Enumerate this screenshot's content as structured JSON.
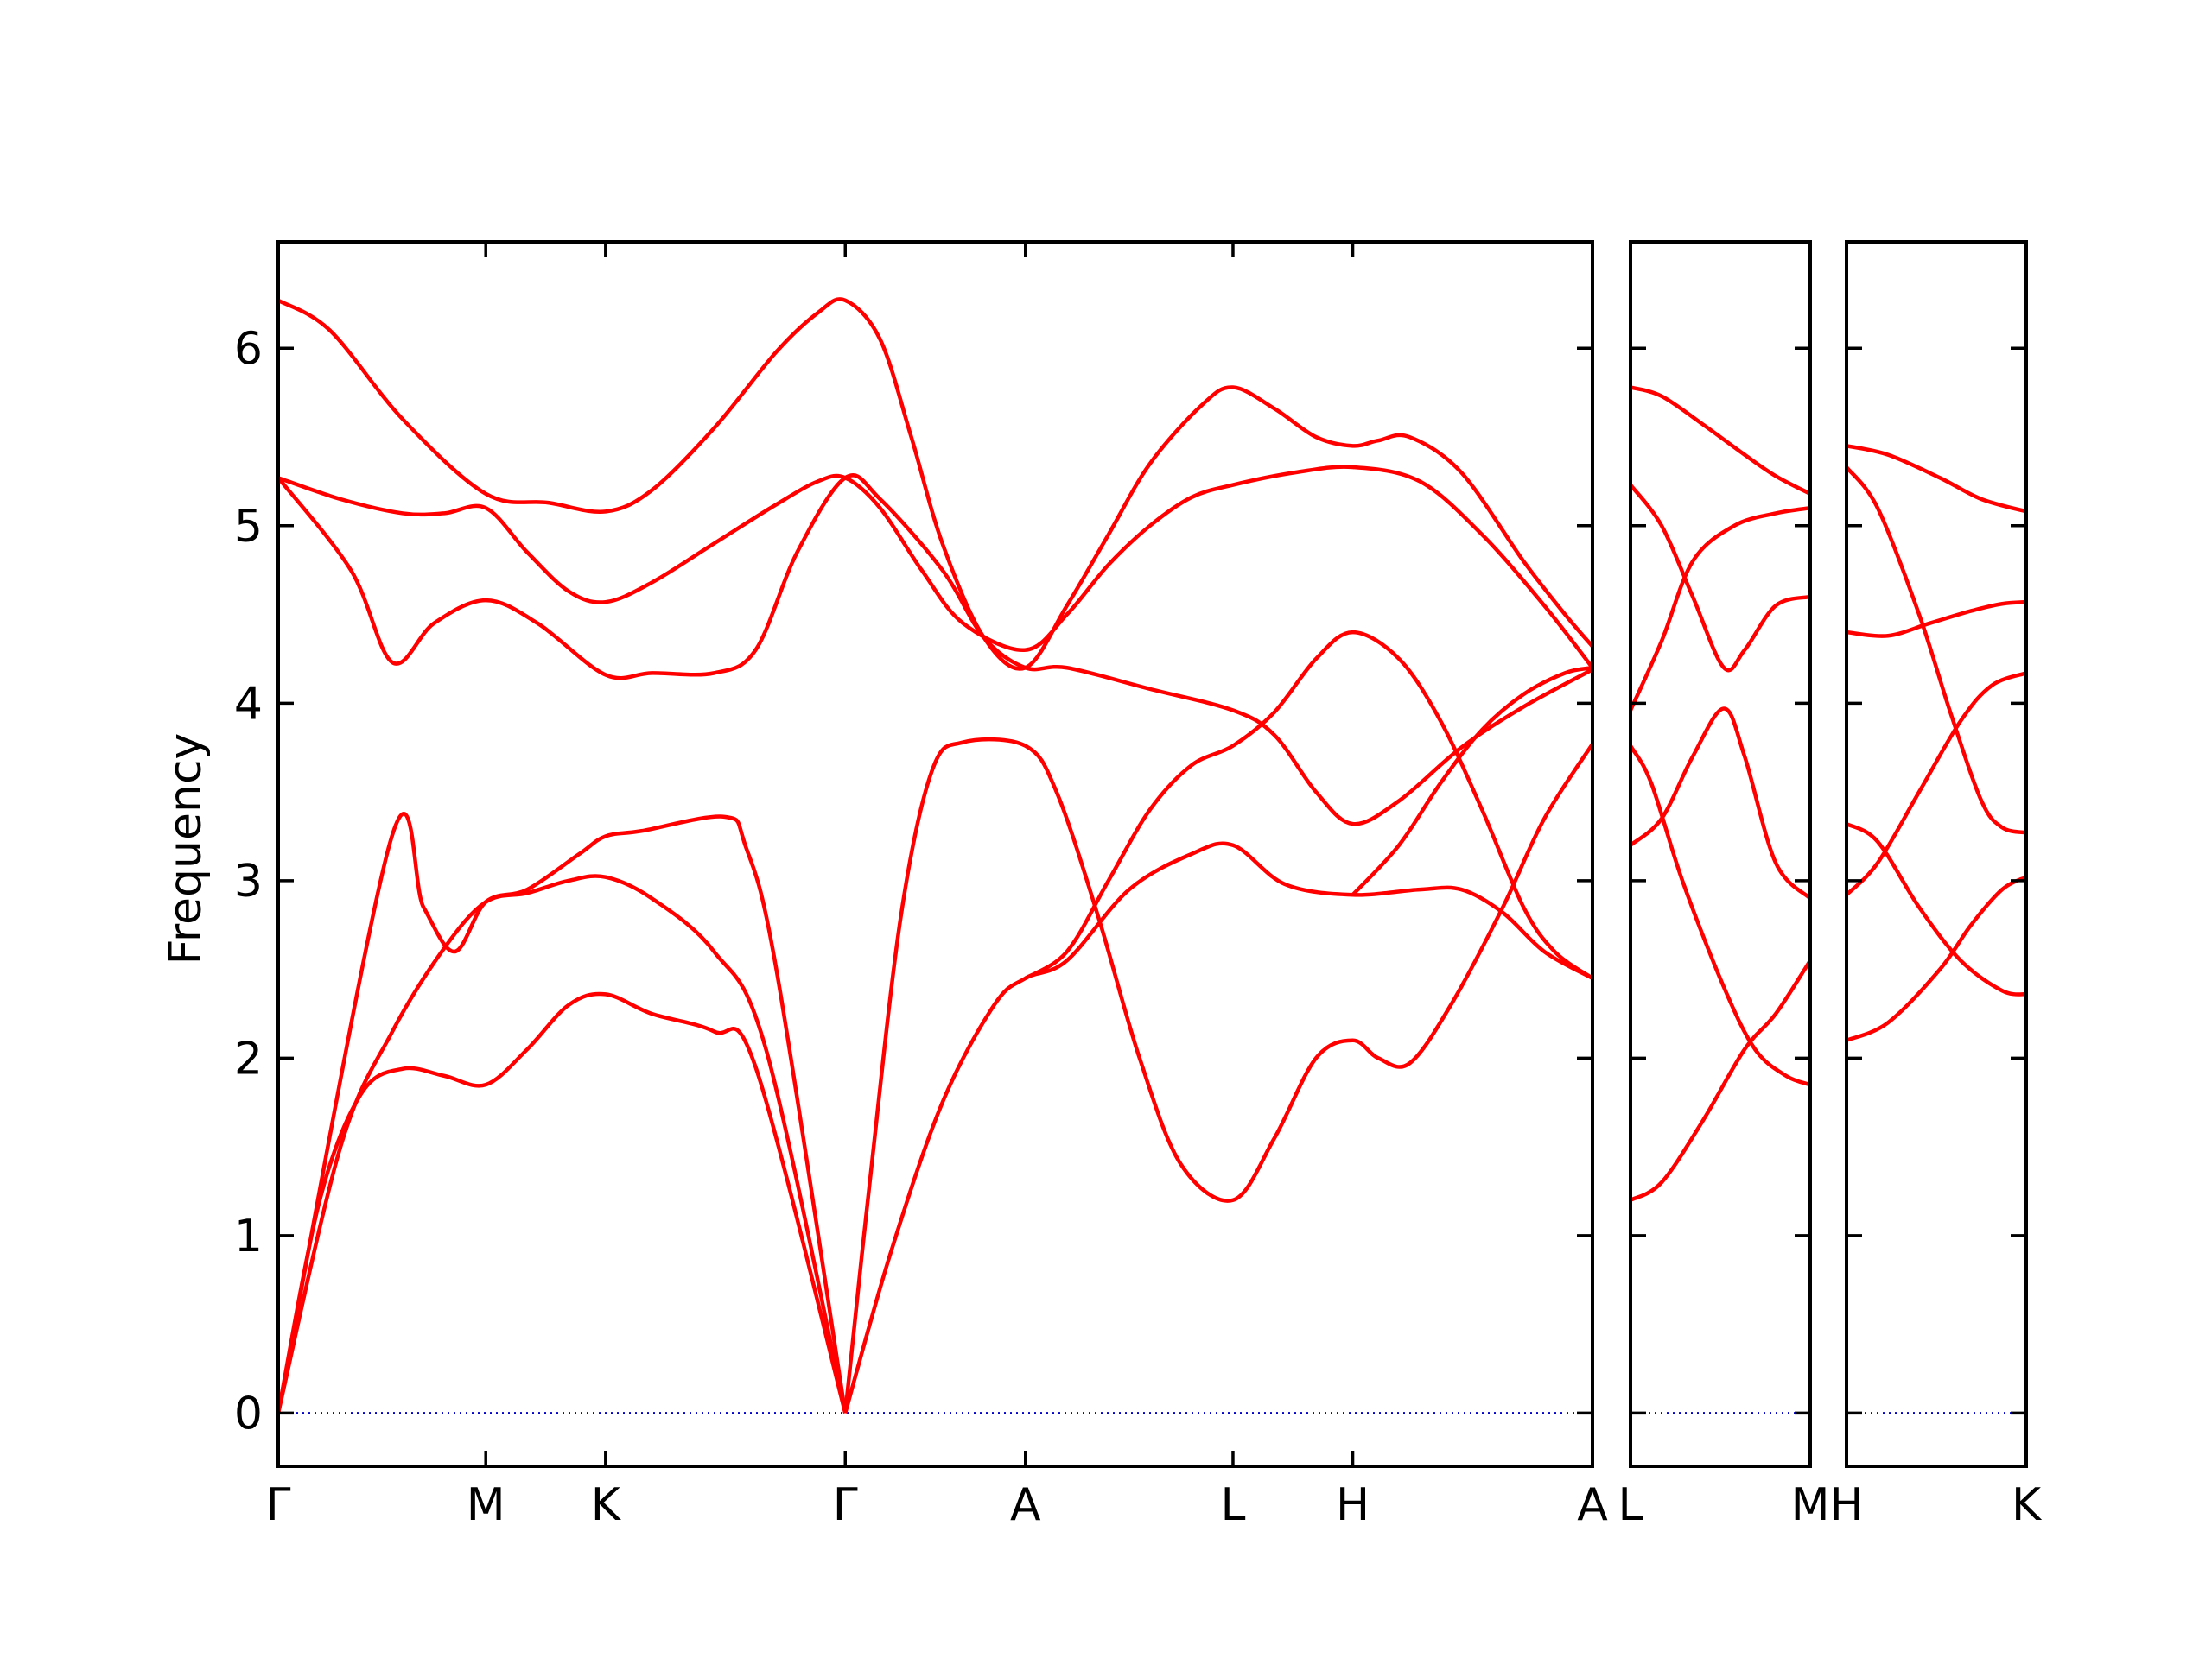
{
  "chart_data": {
    "type": "line",
    "ylabel": "Frequency",
    "ylim": [
      -0.3,
      6.6
    ],
    "yticks": [
      0,
      1,
      2,
      3,
      4,
      5,
      6
    ],
    "grid": false,
    "zero_line_color": "#0000cc",
    "band_color": "#ff0000",
    "panels": [
      {
        "ticks": [
          {
            "label": "Γ",
            "x": 0
          },
          {
            "label": "M",
            "x": 1.0
          },
          {
            "label": "K",
            "x": 1.577
          },
          {
            "label": "Γ",
            "x": 2.732
          },
          {
            "label": "A",
            "x": 3.6
          },
          {
            "label": "L",
            "x": 4.6
          },
          {
            "label": "H",
            "x": 5.177
          },
          {
            "label": "A",
            "x": 6.332
          }
        ],
        "xlim": [
          0,
          6.332
        ],
        "bands": [
          [
            [
              0,
              0
            ],
            [
              0.54,
              3.22
            ],
            [
              0.7,
              2.85
            ],
            [
              0.85,
              2.6
            ],
            [
              1.0,
              2.88
            ],
            [
              1.2,
              2.95
            ],
            [
              1.45,
              3.15
            ],
            [
              1.577,
              3.25
            ],
            [
              1.75,
              3.28
            ],
            [
              2.15,
              3.36
            ],
            [
              2.25,
              3.2
            ],
            [
              2.4,
              2.5
            ],
            [
              2.732,
              0
            ]
          ],
          [
            [
              0,
              0
            ],
            [
              0.3,
              1.5
            ],
            [
              0.55,
              2.15
            ],
            [
              0.8,
              2.62
            ],
            [
              1.0,
              2.88
            ],
            [
              1.2,
              2.93
            ],
            [
              1.4,
              3.0
            ],
            [
              1.577,
              3.02
            ],
            [
              1.8,
              2.9
            ],
            [
              2.1,
              2.6
            ],
            [
              2.35,
              2.05
            ],
            [
              2.732,
              0
            ]
          ],
          [
            [
              0,
              0
            ],
            [
              0.2,
              1.2
            ],
            [
              0.4,
              1.8
            ],
            [
              0.6,
              1.94
            ],
            [
              0.8,
              1.9
            ],
            [
              1.0,
              1.85
            ],
            [
              1.2,
              2.05
            ],
            [
              1.4,
              2.3
            ],
            [
              1.577,
              2.36
            ],
            [
              1.8,
              2.25
            ],
            [
              2.1,
              2.15
            ],
            [
              2.3,
              1.95
            ],
            [
              2.732,
              0
            ]
          ],
          [
            [
              0,
              5.27
            ],
            [
              0.35,
              4.75
            ],
            [
              0.55,
              4.23
            ],
            [
              0.75,
              4.45
            ],
            [
              1.0,
              4.58
            ],
            [
              1.25,
              4.45
            ],
            [
              1.577,
              4.16
            ],
            [
              1.8,
              4.17
            ],
            [
              2.1,
              4.17
            ],
            [
              2.3,
              4.3
            ],
            [
              2.5,
              4.85
            ],
            [
              2.732,
              5.27
            ],
            [
              2.9,
              5.15
            ],
            [
              3.2,
              4.75
            ],
            [
              3.4,
              4.37
            ],
            [
              3.6,
              4.2
            ],
            [
              3.8,
              4.2
            ],
            [
              4.2,
              4.08
            ],
            [
              4.6,
              3.96
            ],
            [
              4.8,
              3.82
            ],
            [
              5.0,
              3.5
            ],
            [
              5.177,
              3.32
            ],
            [
              5.4,
              3.45
            ],
            [
              5.7,
              3.75
            ],
            [
              6.0,
              3.98
            ],
            [
              6.332,
              4.19
            ]
          ],
          [
            [
              0,
              5.27
            ],
            [
              0.3,
              5.15
            ],
            [
              0.6,
              5.07
            ],
            [
              0.8,
              5.07
            ],
            [
              1.0,
              5.1
            ],
            [
              1.2,
              4.85
            ],
            [
              1.4,
              4.63
            ],
            [
              1.577,
              4.57
            ],
            [
              1.8,
              4.68
            ],
            [
              2.1,
              4.9
            ],
            [
              2.4,
              5.12
            ],
            [
              2.6,
              5.25
            ],
            [
              2.732,
              5.27
            ],
            [
              2.9,
              5.1
            ],
            [
              3.1,
              4.75
            ],
            [
              3.3,
              4.45
            ],
            [
              3.6,
              4.3
            ],
            [
              3.8,
              4.5
            ],
            [
              4.0,
              4.78
            ],
            [
              4.2,
              5.0
            ],
            [
              4.4,
              5.16
            ],
            [
              4.6,
              5.23
            ],
            [
              4.9,
              5.3
            ],
            [
              5.177,
              5.33
            ],
            [
              5.5,
              5.25
            ],
            [
              5.8,
              4.95
            ],
            [
              6.1,
              4.55
            ],
            [
              6.332,
              4.2
            ]
          ],
          [
            [
              0,
              6.27
            ],
            [
              0.25,
              6.1
            ],
            [
              0.6,
              5.6
            ],
            [
              1.0,
              5.18
            ],
            [
              1.3,
              5.13
            ],
            [
              1.577,
              5.08
            ],
            [
              1.8,
              5.2
            ],
            [
              2.1,
              5.55
            ],
            [
              2.4,
              5.98
            ],
            [
              2.6,
              6.2
            ],
            [
              2.732,
              6.27
            ],
            [
              2.9,
              6.05
            ],
            [
              3.05,
              5.5
            ],
            [
              3.2,
              4.9
            ],
            [
              3.4,
              4.37
            ],
            [
              3.6,
              4.2
            ],
            [
              3.8,
              4.55
            ],
            [
              4.0,
              4.95
            ],
            [
              4.2,
              5.35
            ],
            [
              4.45,
              5.68
            ],
            [
              4.6,
              5.78
            ],
            [
              4.8,
              5.66
            ],
            [
              5.0,
              5.5
            ],
            [
              5.177,
              5.45
            ],
            [
              5.3,
              5.48
            ],
            [
              5.45,
              5.5
            ],
            [
              5.7,
              5.3
            ],
            [
              6.0,
              4.8
            ],
            [
              6.2,
              4.5
            ],
            [
              6.332,
              4.32
            ]
          ],
          [
            [
              2.732,
              0
            ],
            [
              2.95,
              0.9
            ],
            [
              3.2,
              1.75
            ],
            [
              3.45,
              2.3
            ],
            [
              3.6,
              2.45
            ],
            [
              3.8,
              2.55
            ],
            [
              4.1,
              2.95
            ],
            [
              4.4,
              3.15
            ],
            [
              4.6,
              3.2
            ],
            [
              4.85,
              2.98
            ],
            [
              5.177,
              2.92
            ],
            [
              5.5,
              2.95
            ],
            [
              5.7,
              2.95
            ],
            [
              5.9,
              2.82
            ],
            [
              6.1,
              2.6
            ],
            [
              6.332,
              2.45
            ]
          ],
          [
            [
              2.732,
              0
            ],
            [
              2.85,
              1.3
            ],
            [
              3.0,
              2.8
            ],
            [
              3.15,
              3.62
            ],
            [
              3.3,
              3.78
            ],
            [
              3.6,
              3.76
            ],
            [
              3.75,
              3.5
            ],
            [
              3.95,
              2.8
            ],
            [
              4.15,
              2.0
            ],
            [
              4.35,
              1.4
            ],
            [
              4.6,
              1.2
            ],
            [
              4.8,
              1.55
            ],
            [
              5.0,
              2.0
            ],
            [
              5.177,
              2.1
            ],
            [
              5.3,
              2.0
            ],
            [
              5.45,
              1.97
            ],
            [
              5.65,
              2.3
            ],
            [
              5.9,
              2.85
            ],
            [
              6.1,
              3.35
            ],
            [
              6.332,
              3.77
            ]
          ],
          [
            [
              3.6,
              2.45
            ],
            [
              3.8,
              2.6
            ],
            [
              4.0,
              3.0
            ],
            [
              4.2,
              3.4
            ],
            [
              4.4,
              3.65
            ],
            [
              4.6,
              3.76
            ],
            [
              4.8,
              3.95
            ],
            [
              5.0,
              4.25
            ],
            [
              5.177,
              4.4
            ],
            [
              5.4,
              4.25
            ],
            [
              5.6,
              3.9
            ],
            [
              5.8,
              3.4
            ],
            [
              6.0,
              2.85
            ],
            [
              6.15,
              2.6
            ],
            [
              6.332,
              2.45
            ]
          ],
          [
            [
              5.177,
              2.92
            ],
            [
              5.4,
              3.2
            ],
            [
              5.6,
              3.55
            ],
            [
              5.8,
              3.85
            ],
            [
              6.0,
              4.05
            ],
            [
              6.2,
              4.17
            ],
            [
              6.332,
              4.2
            ]
          ]
        ]
      },
      {
        "ticks": [
          {
            "label": "L",
            "x": 0
          },
          {
            "label": "M",
            "x": 0.866
          }
        ],
        "xlim": [
          0,
          0.866
        ],
        "bands": [
          [
            [
              0,
              1.2
            ],
            [
              0.15,
              1.3
            ],
            [
              0.35,
              1.65
            ],
            [
              0.55,
              2.05
            ],
            [
              0.7,
              2.25
            ],
            [
              0.866,
              2.55
            ]
          ],
          [
            [
              0,
              3.2
            ],
            [
              0.15,
              3.35
            ],
            [
              0.3,
              3.7
            ],
            [
              0.45,
              3.97
            ],
            [
              0.55,
              3.7
            ],
            [
              0.7,
              3.1
            ],
            [
              0.866,
              2.9
            ]
          ],
          [
            [
              0,
              3.76
            ],
            [
              0.1,
              3.55
            ],
            [
              0.25,
              3.0
            ],
            [
              0.45,
              2.4
            ],
            [
              0.6,
              2.05
            ],
            [
              0.75,
              1.9
            ],
            [
              0.866,
              1.85
            ]
          ],
          [
            [
              0,
              3.96
            ],
            [
              0.15,
              4.35
            ],
            [
              0.3,
              4.8
            ],
            [
              0.5,
              5.0
            ],
            [
              0.7,
              5.07
            ],
            [
              0.866,
              5.1
            ]
          ],
          [
            [
              0,
              5.23
            ],
            [
              0.15,
              5.0
            ],
            [
              0.3,
              4.6
            ],
            [
              0.45,
              4.2
            ],
            [
              0.55,
              4.3
            ],
            [
              0.7,
              4.55
            ],
            [
              0.866,
              4.6
            ]
          ],
          [
            [
              0,
              5.78
            ],
            [
              0.15,
              5.73
            ],
            [
              0.35,
              5.57
            ],
            [
              0.55,
              5.4
            ],
            [
              0.7,
              5.28
            ],
            [
              0.866,
              5.18
            ]
          ]
        ]
      },
      {
        "ticks": [
          {
            "label": "H",
            "x": 0
          },
          {
            "label": "K",
            "x": 0.866
          }
        ],
        "xlim": [
          0,
          0.866
        ],
        "bands": [
          [
            [
              0,
              2.1
            ],
            [
              0.2,
              2.2
            ],
            [
              0.45,
              2.5
            ],
            [
              0.6,
              2.75
            ],
            [
              0.75,
              2.95
            ],
            [
              0.866,
              3.02
            ]
          ],
          [
            [
              0,
              2.92
            ],
            [
              0.15,
              3.1
            ],
            [
              0.35,
              3.5
            ],
            [
              0.55,
              3.9
            ],
            [
              0.7,
              4.1
            ],
            [
              0.866,
              4.17
            ]
          ],
          [
            [
              0,
              3.32
            ],
            [
              0.15,
              3.22
            ],
            [
              0.35,
              2.85
            ],
            [
              0.55,
              2.55
            ],
            [
              0.75,
              2.38
            ],
            [
              0.866,
              2.36
            ]
          ],
          [
            [
              0,
              4.4
            ],
            [
              0.2,
              4.38
            ],
            [
              0.4,
              4.45
            ],
            [
              0.6,
              4.52
            ],
            [
              0.75,
              4.56
            ],
            [
              0.866,
              4.57
            ]
          ],
          [
            [
              0,
              5.33
            ],
            [
              0.15,
              5.1
            ],
            [
              0.35,
              4.5
            ],
            [
              0.5,
              3.95
            ],
            [
              0.65,
              3.45
            ],
            [
              0.75,
              3.3
            ],
            [
              0.866,
              3.27
            ]
          ],
          [
            [
              0,
              5.45
            ],
            [
              0.2,
              5.4
            ],
            [
              0.45,
              5.27
            ],
            [
              0.65,
              5.15
            ],
            [
              0.866,
              5.08
            ]
          ]
        ]
      }
    ]
  }
}
